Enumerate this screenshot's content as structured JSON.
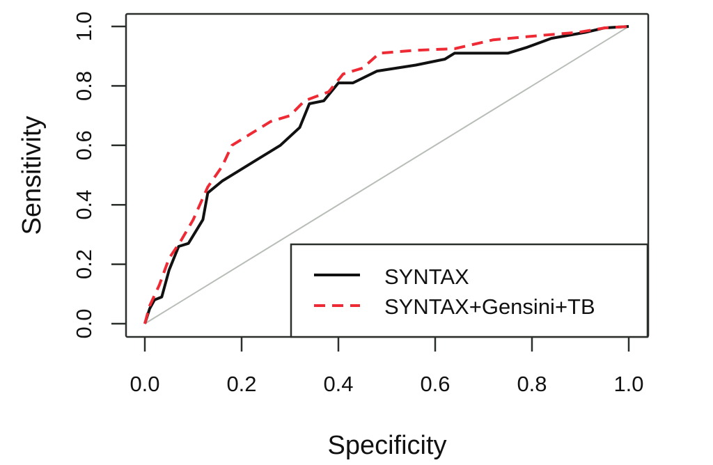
{
  "chart_data": {
    "type": "line",
    "title": "",
    "xlabel": "Specificity",
    "ylabel": "Sensitivity",
    "xlim": [
      0.0,
      1.0
    ],
    "ylim": [
      0.0,
      1.0
    ],
    "x_ticks": [
      "0.0",
      "0.2",
      "0.4",
      "0.6",
      "0.8",
      "1.0"
    ],
    "y_ticks": [
      "0.0",
      "0.2",
      "0.4",
      "0.6",
      "0.8",
      "1.0"
    ],
    "grid": false,
    "legend_position": "bottom-right",
    "reference_line": {
      "name": "diagonal",
      "x": [
        0,
        1
      ],
      "y": [
        0,
        1
      ],
      "color": "#b8bdb8"
    },
    "series": [
      {
        "name": "SYNTAX",
        "color": "#111111",
        "style": "solid",
        "x": [
          0,
          0.01,
          0.02,
          0.035,
          0.05,
          0.07,
          0.09,
          0.12,
          0.13,
          0.16,
          0.19,
          0.23,
          0.28,
          0.32,
          0.34,
          0.37,
          0.4,
          0.43,
          0.48,
          0.56,
          0.62,
          0.64,
          0.75,
          0.79,
          0.84,
          0.91,
          0.95,
          1.0
        ],
        "y": [
          0,
          0.05,
          0.08,
          0.09,
          0.18,
          0.26,
          0.27,
          0.35,
          0.44,
          0.48,
          0.51,
          0.55,
          0.6,
          0.66,
          0.74,
          0.75,
          0.81,
          0.81,
          0.85,
          0.87,
          0.89,
          0.91,
          0.91,
          0.93,
          0.96,
          0.98,
          0.995,
          1.0
        ]
      },
      {
        "name": "SYNTAX+Gensini+TB",
        "color": "#ee2a35",
        "style": "dashed",
        "x": [
          0,
          0.01,
          0.03,
          0.05,
          0.075,
          0.1,
          0.13,
          0.16,
          0.18,
          0.22,
          0.26,
          0.3,
          0.33,
          0.38,
          0.41,
          0.45,
          0.485,
          0.56,
          0.64,
          0.72,
          0.82,
          0.895,
          0.95,
          1.0
        ],
        "y": [
          0,
          0.06,
          0.13,
          0.22,
          0.28,
          0.35,
          0.46,
          0.53,
          0.6,
          0.64,
          0.68,
          0.7,
          0.75,
          0.78,
          0.84,
          0.86,
          0.91,
          0.92,
          0.925,
          0.955,
          0.97,
          0.98,
          0.995,
          1.0
        ]
      }
    ]
  }
}
